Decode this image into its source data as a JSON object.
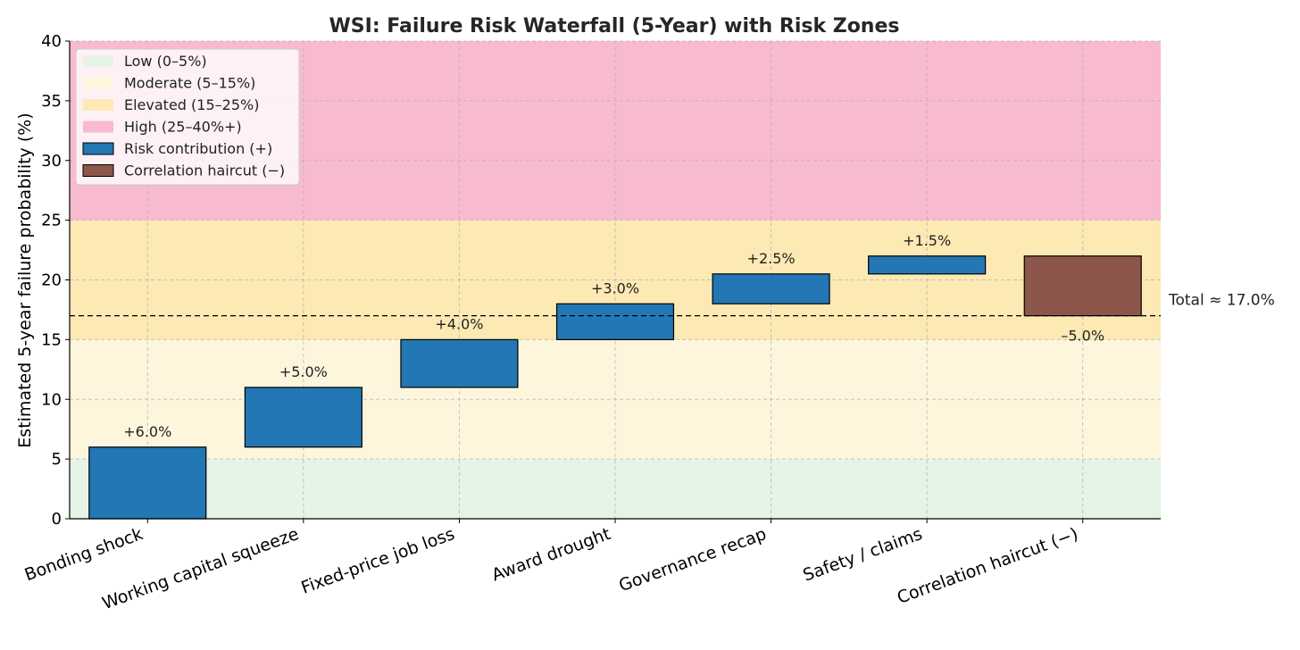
{
  "chart_data": {
    "type": "bar",
    "subtype": "waterfall",
    "title": "WSI: Failure Risk Waterfall (5-Year) with Risk Zones",
    "xlabel": "",
    "ylabel": "Estimated 5-year failure probability (%)",
    "ylim": [
      0,
      40
    ],
    "yticks": [
      0,
      5,
      10,
      15,
      20,
      25,
      30,
      35,
      40
    ],
    "grid": true,
    "categories": [
      "Bonding shock",
      "Working capital squeeze",
      "Fixed-price job loss",
      "Award drought",
      "Governance recap",
      "Safety / claims",
      "Correlation haircut (−)"
    ],
    "values": [
      6.0,
      5.0,
      4.0,
      3.0,
      2.5,
      1.5,
      -5.0
    ],
    "data_labels": [
      "+6.0%",
      "+5.0%",
      "+4.0%",
      "+3.0%",
      "+2.5%",
      "+1.5%",
      "–5.0%"
    ],
    "kinds": [
      "pos",
      "pos",
      "pos",
      "pos",
      "pos",
      "pos",
      "neg"
    ],
    "zones": [
      {
        "label": "Low (0–5%)",
        "from": 0,
        "to": 5,
        "color": "#e6f4e6"
      },
      {
        "label": "Moderate (5–15%)",
        "from": 5,
        "to": 15,
        "color": "#fdf6dd"
      },
      {
        "label": "Elevated (15–25%)",
        "from": 15,
        "to": 25,
        "color": "#fde9b4"
      },
      {
        "label": "High (25–40%+)",
        "from": 25,
        "to": 40,
        "color": "#f8bad0"
      }
    ],
    "series_legend": [
      {
        "label": "Risk contribution (+)",
        "color": "#2277b4"
      },
      {
        "label": "Correlation haircut (−)",
        "color": "#8c564b"
      }
    ],
    "total": {
      "value": 17.0,
      "label": "Total ≈ 17.0%"
    },
    "legend_position": "top-left"
  }
}
